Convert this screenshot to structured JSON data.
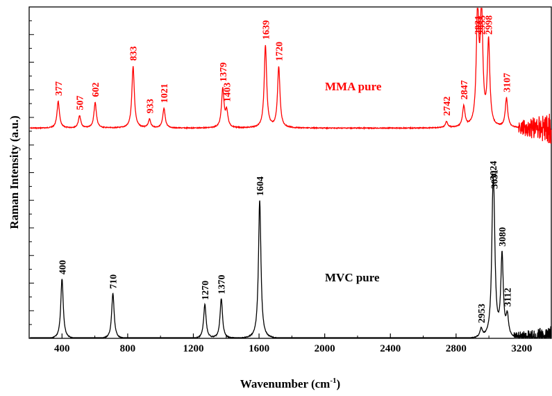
{
  "chart_data": {
    "type": "line",
    "xlabel": "Wavenumber (cm",
    "xlabel_sup": "-1",
    "xlabel_end": ")",
    "ylabel": "Raman Intensity (a.u.)",
    "xlim": [
      200,
      3380
    ],
    "x_ticks": [
      "400",
      "800",
      "1200",
      "1600",
      "2000",
      "2400",
      "2800",
      "3200"
    ],
    "x_tick_values": [
      400,
      800,
      1200,
      1600,
      2000,
      2400,
      2800,
      3200
    ],
    "y_ticks_labeled": false,
    "grid": false,
    "series": [
      {
        "name": "MMA pure",
        "color": "#ff0000",
        "baseline": 0.02,
        "peaks": [
          {
            "x": 377,
            "h": 0.22,
            "label": "377"
          },
          {
            "x": 507,
            "h": 0.1,
            "label": "507"
          },
          {
            "x": 602,
            "h": 0.21,
            "label": "602"
          },
          {
            "x": 833,
            "h": 0.51,
            "label": "833"
          },
          {
            "x": 933,
            "h": 0.07,
            "label": "933"
          },
          {
            "x": 1021,
            "h": 0.16,
            "label": "1021"
          },
          {
            "x": 1379,
            "h": 0.32,
            "label": "1379"
          },
          {
            "x": 1403,
            "h": 0.13,
            "label": "1403"
          },
          {
            "x": 1639,
            "h": 0.68,
            "label": "1639"
          },
          {
            "x": 1720,
            "h": 0.5,
            "label": "1720"
          },
          {
            "x": 2742,
            "h": 0.05,
            "label": "2742"
          },
          {
            "x": 2847,
            "h": 0.17,
            "label": "2847"
          },
          {
            "x": 2931,
            "h": 0.95,
            "label": "2931"
          },
          {
            "x": 2955,
            "h": 0.95,
            "label": "2955"
          },
          {
            "x": 2998,
            "h": 0.7,
            "label": "2998"
          },
          {
            "x": 3107,
            "h": 0.24,
            "label": "3107"
          }
        ]
      },
      {
        "name": "MVC pure",
        "color": "#000000",
        "baseline": 0.01,
        "peaks": [
          {
            "x": 400,
            "h": 0.42,
            "label": "400"
          },
          {
            "x": 710,
            "h": 0.32,
            "label": "710"
          },
          {
            "x": 1270,
            "h": 0.24,
            "label": "1270"
          },
          {
            "x": 1370,
            "h": 0.28,
            "label": "1370"
          },
          {
            "x": 1604,
            "h": 0.97,
            "label": "1604"
          },
          {
            "x": 2953,
            "h": 0.06,
            "label": "2953"
          },
          {
            "x": 3024,
            "h": 0.72,
            "label": "3024"
          },
          {
            "x": 3031,
            "h": 0.55,
            "label": "3031"
          },
          {
            "x": 3080,
            "h": 0.57,
            "label": "3080"
          },
          {
            "x": 3112,
            "h": 0.14,
            "label": "3112"
          }
        ]
      }
    ]
  }
}
